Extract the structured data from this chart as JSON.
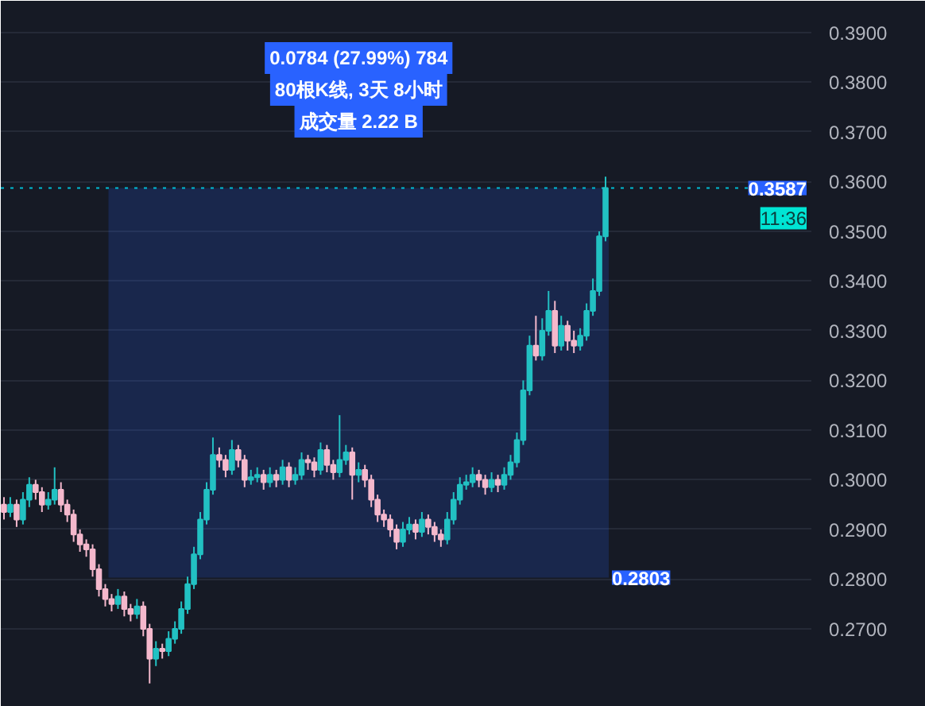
{
  "chart_data": {
    "type": "candlestick",
    "categories": [
      null,
      null,
      null,
      null,
      null,
      null,
      null,
      null,
      null,
      null,
      null,
      null,
      null,
      null,
      null,
      null,
      null,
      null,
      null,
      null,
      null,
      null,
      null,
      null,
      null,
      null,
      null,
      null,
      null,
      null,
      null,
      null,
      null,
      null,
      null,
      null,
      null,
      null,
      null,
      null,
      null,
      null,
      null,
      null,
      null,
      null,
      null,
      null,
      null,
      null,
      null,
      null,
      null,
      null,
      null,
      null,
      null,
      null,
      null,
      null,
      null,
      null,
      null,
      null,
      null,
      null,
      null,
      null,
      null,
      null,
      null,
      null,
      null,
      null,
      null,
      null,
      null,
      null,
      null,
      null,
      null,
      null,
      null,
      null,
      null,
      null,
      null,
      null,
      null,
      null,
      null,
      null,
      null,
      null,
      null,
      null,
      null,
      null,
      null,
      null,
      null,
      null,
      null,
      null,
      null,
      null,
      null,
      null,
      null,
      null,
      null,
      null,
      null,
      null,
      null,
      null,
      null,
      null,
      null,
      null,
      null,
      null,
      null,
      null,
      null,
      null,
      null,
      null
    ],
    "ohlc": [
      [
        0.295,
        0.2965,
        0.292,
        0.2935
      ],
      [
        0.2935,
        0.2965,
        0.2925,
        0.295
      ],
      [
        0.295,
        0.296,
        0.2905,
        0.292
      ],
      [
        0.292,
        0.2975,
        0.291,
        0.296
      ],
      [
        0.296,
        0.3005,
        0.2945,
        0.299
      ],
      [
        0.299,
        0.3,
        0.296,
        0.2975
      ],
      [
        0.2975,
        0.2985,
        0.2935,
        0.295
      ],
      [
        0.295,
        0.2975,
        0.294,
        0.296
      ],
      [
        0.296,
        0.3025,
        0.295,
        0.298
      ],
      [
        0.298,
        0.2995,
        0.2935,
        0.295
      ],
      [
        0.295,
        0.296,
        0.2915,
        0.293
      ],
      [
        0.293,
        0.294,
        0.2875,
        0.289
      ],
      [
        0.289,
        0.29,
        0.2855,
        0.287
      ],
      [
        0.287,
        0.288,
        0.2845,
        0.286
      ],
      [
        0.286,
        0.287,
        0.2805,
        0.282
      ],
      [
        0.282,
        0.283,
        0.2765,
        0.278
      ],
      [
        0.278,
        0.279,
        0.2745,
        0.276
      ],
      [
        0.276,
        0.277,
        0.2735,
        0.275
      ],
      [
        0.275,
        0.278,
        0.274,
        0.2765
      ],
      [
        0.2765,
        0.2775,
        0.2725,
        0.274
      ],
      [
        0.274,
        0.275,
        0.2715,
        0.273
      ],
      [
        0.273,
        0.276,
        0.272,
        0.2745
      ],
      [
        0.2745,
        0.2755,
        0.2685,
        0.27
      ],
      [
        0.27,
        0.271,
        0.259,
        0.264
      ],
      [
        0.264,
        0.2675,
        0.2625,
        0.266
      ],
      [
        0.266,
        0.267,
        0.264,
        0.2655
      ],
      [
        0.2655,
        0.2695,
        0.2645,
        0.268
      ],
      [
        0.268,
        0.2715,
        0.267,
        0.27
      ],
      [
        0.27,
        0.2755,
        0.269,
        0.274
      ],
      [
        0.274,
        0.2805,
        0.273,
        0.279
      ],
      [
        0.279,
        0.2865,
        0.278,
        0.285
      ],
      [
        0.285,
        0.2935,
        0.284,
        0.292
      ],
      [
        0.292,
        0.2995,
        0.291,
        0.298
      ],
      [
        0.298,
        0.3085,
        0.297,
        0.305
      ],
      [
        0.305,
        0.3065,
        0.3025,
        0.304
      ],
      [
        0.304,
        0.305,
        0.3005,
        0.302
      ],
      [
        0.302,
        0.308,
        0.301,
        0.306
      ],
      [
        0.306,
        0.307,
        0.3025,
        0.304
      ],
      [
        0.304,
        0.305,
        0.2985,
        0.3
      ],
      [
        0.3,
        0.302,
        0.299,
        0.3005
      ],
      [
        0.3005,
        0.3025,
        0.2995,
        0.301
      ],
      [
        0.301,
        0.302,
        0.298,
        0.2995
      ],
      [
        0.2995,
        0.3025,
        0.2985,
        0.301
      ],
      [
        0.301,
        0.302,
        0.2985,
        0.3
      ],
      [
        0.3,
        0.304,
        0.299,
        0.3025
      ],
      [
        0.3025,
        0.3035,
        0.2985,
        0.3
      ],
      [
        0.3,
        0.3025,
        0.299,
        0.301
      ],
      [
        0.301,
        0.3055,
        0.3,
        0.304
      ],
      [
        0.304,
        0.305,
        0.302,
        0.3035
      ],
      [
        0.3035,
        0.3045,
        0.3005,
        0.302
      ],
      [
        0.302,
        0.3075,
        0.301,
        0.306
      ],
      [
        0.306,
        0.307,
        0.3015,
        0.303
      ],
      [
        0.303,
        0.304,
        0.3,
        0.3015
      ],
      [
        0.3015,
        0.313,
        0.3005,
        0.304
      ],
      [
        0.304,
        0.307,
        0.303,
        0.3055
      ],
      [
        0.3055,
        0.3065,
        0.296,
        0.301
      ],
      [
        0.301,
        0.3035,
        0.2995,
        0.302
      ],
      [
        0.302,
        0.303,
        0.2985,
        0.3
      ],
      [
        0.3,
        0.301,
        0.2945,
        0.296
      ],
      [
        0.296,
        0.297,
        0.2915,
        0.293
      ],
      [
        0.293,
        0.294,
        0.2905,
        0.292
      ],
      [
        0.292,
        0.293,
        0.2885,
        0.29
      ],
      [
        0.29,
        0.291,
        0.286,
        0.2875
      ],
      [
        0.2875,
        0.2915,
        0.2865,
        0.29
      ],
      [
        0.29,
        0.2925,
        0.289,
        0.291
      ],
      [
        0.291,
        0.292,
        0.288,
        0.2895
      ],
      [
        0.2895,
        0.2935,
        0.2885,
        0.292
      ],
      [
        0.292,
        0.293,
        0.289,
        0.2905
      ],
      [
        0.2905,
        0.2915,
        0.2875,
        0.289
      ],
      [
        0.289,
        0.29,
        0.2865,
        0.288
      ],
      [
        0.288,
        0.2935,
        0.287,
        0.292
      ],
      [
        0.292,
        0.2975,
        0.291,
        0.296
      ],
      [
        0.296,
        0.3005,
        0.295,
        0.299
      ],
      [
        0.299,
        0.301,
        0.298,
        0.2995
      ],
      [
        0.2995,
        0.3025,
        0.2985,
        0.301
      ],
      [
        0.301,
        0.302,
        0.2985,
        0.3
      ],
      [
        0.3,
        0.301,
        0.297,
        0.2985
      ],
      [
        0.2985,
        0.3015,
        0.2975,
        0.3
      ],
      [
        0.3,
        0.301,
        0.2975,
        0.299
      ],
      [
        0.299,
        0.3025,
        0.298,
        0.301
      ],
      [
        0.301,
        0.305,
        0.3,
        0.3035
      ],
      [
        0.3035,
        0.3095,
        0.3025,
        0.308
      ],
      [
        0.308,
        0.32,
        0.307,
        0.318
      ],
      [
        0.318,
        0.329,
        0.317,
        0.327
      ],
      [
        0.327,
        0.333,
        0.324,
        0.325
      ],
      [
        0.325,
        0.3325,
        0.324,
        0.33
      ],
      [
        0.33,
        0.338,
        0.329,
        0.334
      ],
      [
        0.334,
        0.336,
        0.3255,
        0.327
      ],
      [
        0.327,
        0.333,
        0.326,
        0.331
      ],
      [
        0.331,
        0.332,
        0.326,
        0.328
      ],
      [
        0.328,
        0.33,
        0.3255,
        0.327
      ],
      [
        0.327,
        0.3305,
        0.326,
        0.329
      ],
      [
        0.329,
        0.3355,
        0.328,
        0.334
      ],
      [
        0.334,
        0.3405,
        0.333,
        0.338
      ],
      [
        0.338,
        0.35,
        0.337,
        0.349
      ],
      [
        0.349,
        0.361,
        0.348,
        0.3587
      ],
      null,
      null,
      null,
      null,
      null,
      null,
      null,
      null,
      null,
      null,
      null,
      null,
      null,
      null,
      null,
      null,
      null,
      null,
      null,
      null,
      null,
      null,
      null,
      null,
      null,
      null,
      null,
      null,
      null,
      null,
      null,
      null
    ],
    "ylim": [
      0.2543,
      0.3964
    ],
    "yticks": [
      {
        "value": 0.27,
        "label": "0.2700"
      },
      {
        "value": 0.28,
        "label": "0.2800"
      },
      {
        "value": 0.29,
        "label": "0.2900"
      },
      {
        "value": 0.3,
        "label": "0.3000"
      },
      {
        "value": 0.31,
        "label": "0.3100"
      },
      {
        "value": 0.32,
        "label": "0.3200"
      },
      {
        "value": 0.33,
        "label": "0.3300"
      },
      {
        "value": 0.34,
        "label": "0.3400"
      },
      {
        "value": 0.35,
        "label": "0.3500"
      },
      {
        "value": 0.36,
        "label": "0.3600"
      },
      {
        "value": 0.37,
        "label": "0.3700"
      },
      {
        "value": 0.38,
        "label": "0.3800"
      },
      {
        "value": 0.39,
        "label": "0.3900"
      }
    ],
    "grid": "y",
    "tick_labels": "y",
    "ref_lines": [
      {
        "axis": "y",
        "value": 0.3587,
        "label": "0.3587",
        "color": "#00bcd4",
        "line_style": "dotted"
      }
    ],
    "bands": [
      {
        "axis": "y",
        "from": 0.2803,
        "to": 0.3587,
        "label": "0.2803",
        "color": "#2962ff"
      }
    ],
    "annotations": [
      "0.0784 (27.99%) 784",
      "80根K线, 3天 8小时",
      "成交量 2.22 B",
      "11:36"
    ]
  }
}
